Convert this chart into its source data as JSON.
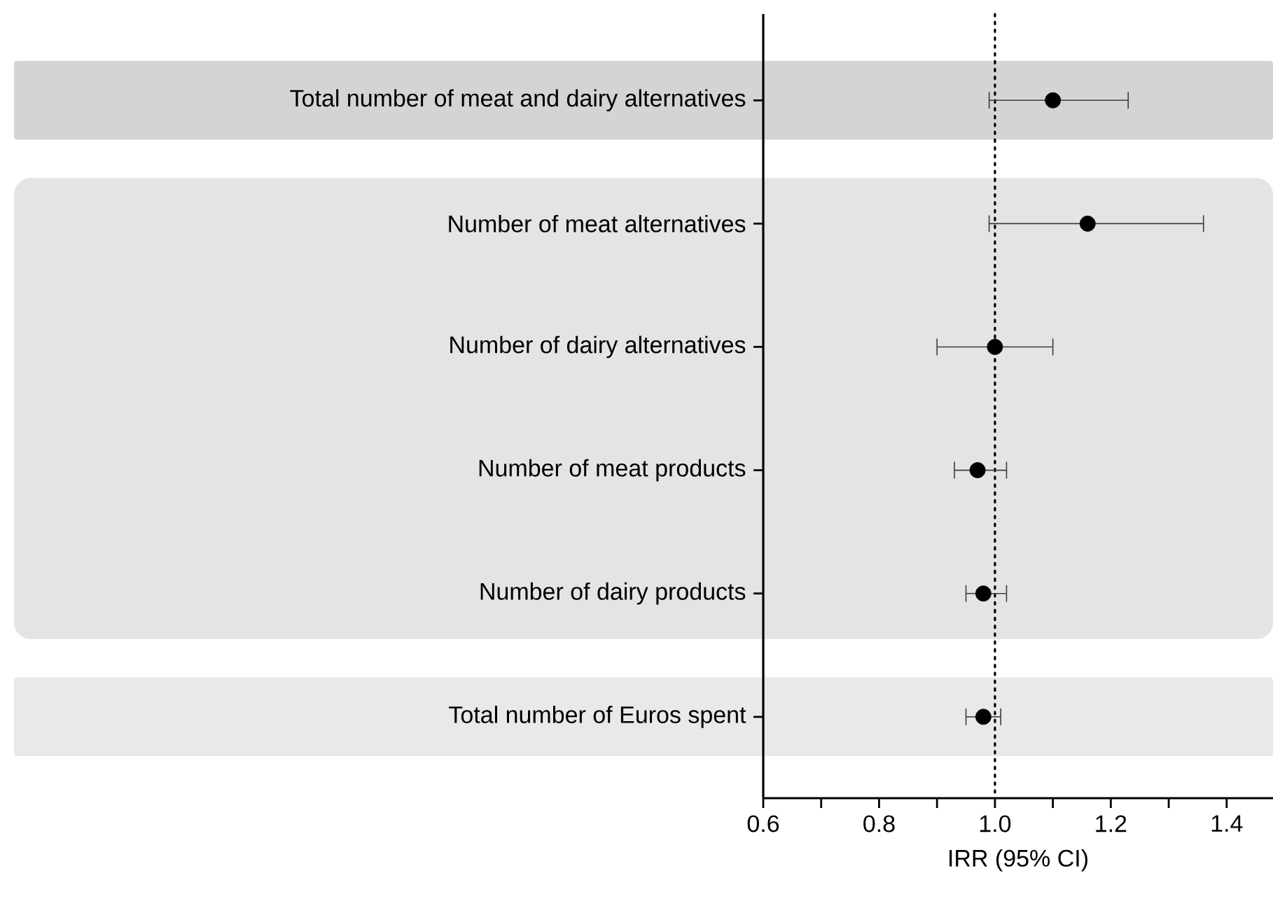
{
  "chart_data": {
    "type": "scatter",
    "orientation": "horizontal",
    "xlabel": "IRR (95% CI)",
    "categories": [
      "Total number of meat and dairy alternatives",
      "Number of meat alternatives",
      "Number of dairy alternatives",
      "Number of meat products",
      "Number of dairy products",
      "Total number of Euros spent"
    ],
    "values": [
      1.1,
      1.16,
      1.0,
      0.97,
      0.98,
      0.98
    ],
    "errors": [
      [
        0.99,
        1.23
      ],
      [
        0.99,
        1.36
      ],
      [
        0.9,
        1.1
      ],
      [
        0.93,
        1.02
      ],
      [
        0.95,
        1.02
      ],
      [
        0.95,
        1.01
      ]
    ],
    "color": "#000000",
    "marker": "circle",
    "xlim": [
      0.6,
      1.48
    ],
    "xticks": [
      0.6,
      {
        "value": 0.7,
        "label": null
      },
      0.8,
      {
        "value": 0.9,
        "label": null
      },
      {
        "value": 1.0,
        "label": "1.0"
      },
      {
        "value": 1.1,
        "label": null
      },
      1.2,
      {
        "value": 1.3,
        "label": null
      },
      1.4
    ],
    "ref_lines": [
      {
        "axis": "x",
        "value": 1.0,
        "line_style": "dotted",
        "color": "#000000"
      }
    ],
    "bands": [
      {
        "axis": "y",
        "from": "Total number of meat and dairy alternatives",
        "to": "Total number of meat and dairy alternatives",
        "color": "#d4d4d4"
      },
      {
        "axis": "y",
        "from": "Number of meat alternatives",
        "to": "Number of dairy products",
        "color": "#e4e4e4"
      },
      {
        "axis": "y",
        "from": "Total number of Euros spent",
        "to": "Total number of Euros spent",
        "color": "#e9e9e9"
      }
    ],
    "grid": false,
    "legend": false
  }
}
